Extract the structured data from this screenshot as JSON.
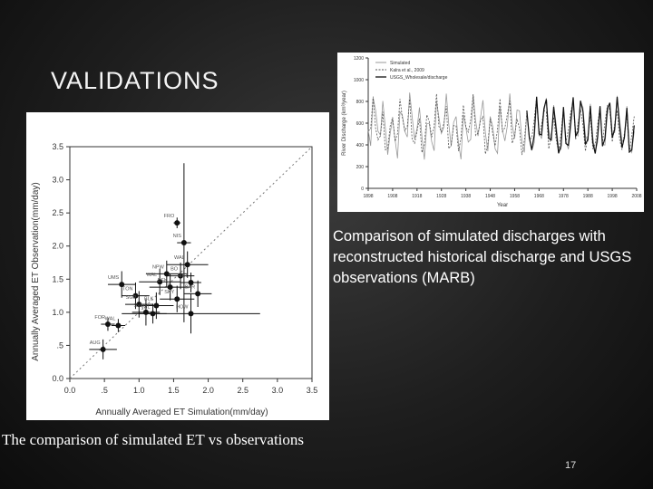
{
  "slide": {
    "title": "VALIDATIONS",
    "caption_right": "Comparison of simulated discharges with reconstructed historical discharge and USGS observations  (MARB)",
    "caption_bottom": "The comparison of simulated ET vs observations",
    "page_number": "17"
  },
  "chart_data": [
    {
      "type": "scatter",
      "xlabel": "Annually Averaged ET Simulation(mm/day)",
      "ylabel": "Annually Averaged ET Observation(mm/day)",
      "xlim": [
        0.0,
        3.5
      ],
      "ylim": [
        0.0,
        3.5
      ],
      "xticks": [
        "0.0",
        ".5",
        "1.0",
        "1.5",
        "2.0",
        "2.5",
        "3.0",
        "3.5"
      ],
      "yticks": [
        "0.0",
        ".5",
        "1.0",
        "1.5",
        "2.0",
        "2.5",
        "3.0",
        "3.5"
      ],
      "reference_line": "1:1",
      "points": [
        {
          "label": "FRO",
          "x": 1.55,
          "y": 2.35,
          "xerr": 0.05,
          "yerr": 0.08
        },
        {
          "label": "NIS",
          "x": 1.65,
          "y": 2.05,
          "xerr": 0.1,
          "yerr": 1.2
        },
        {
          "label": "WAL",
          "x": 1.7,
          "y": 1.72,
          "xerr": 0.3,
          "yerr": 0.2
        },
        {
          "label": "NPW",
          "x": 1.4,
          "y": 1.58,
          "xerr": 0.3,
          "yerr": 0.2
        },
        {
          "label": "BO",
          "x": 1.6,
          "y": 1.55,
          "xerr": 0.2,
          "yerr": 0.2
        },
        {
          "label": "UMS",
          "x": 0.75,
          "y": 1.42,
          "xerr": 0.2,
          "yerr": 0.2
        },
        {
          "label": "WAL",
          "x": 1.3,
          "y": 1.46,
          "xerr": 0.3,
          "yerr": 0.2
        },
        {
          "label": "DFK",
          "x": 1.45,
          "y": 1.38,
          "xerr": 0.3,
          "yerr": 0.2
        },
        {
          "label": "MET",
          "x": 1.75,
          "y": 1.45,
          "xerr": 0.15,
          "yerr": 0.15
        },
        {
          "label": "TON",
          "x": 0.95,
          "y": 1.25,
          "xerr": 0.2,
          "yerr": 0.2
        },
        {
          "label": "SKY",
          "x": 1.55,
          "y": 1.2,
          "xerr": 0.25,
          "yerr": 0.2
        },
        {
          "label": "BAR",
          "x": 1.85,
          "y": 1.28,
          "xerr": 0.2,
          "yerr": 0.2
        },
        {
          "label": "SGP",
          "x": 1.0,
          "y": 1.12,
          "xerr": 0.2,
          "yerr": 0.2
        },
        {
          "label": "BLK",
          "x": 1.25,
          "y": 1.1,
          "xerr": 0.25,
          "yerr": 0.2
        },
        {
          "label": "SVL",
          "x": 1.1,
          "y": 1.0,
          "xerr": 0.2,
          "yerr": 0.2
        },
        {
          "label": "WIL",
          "x": 1.2,
          "y": 0.98,
          "xerr": 0.2,
          "yerr": 0.15
        },
        {
          "label": "HOW",
          "x": 1.75,
          "y": 0.98,
          "xerr": 1.0,
          "yerr": 0.3
        },
        {
          "label": "FOR",
          "x": 0.55,
          "y": 0.82,
          "xerr": 0.1,
          "yerr": 0.1
        },
        {
          "label": "WAL",
          "x": 0.7,
          "y": 0.8,
          "xerr": 0.1,
          "yerr": 0.1
        },
        {
          "label": "AUG",
          "x": 0.48,
          "y": 0.44,
          "xerr": 0.2,
          "yerr": 0.15
        }
      ]
    },
    {
      "type": "line",
      "xlabel": "Year",
      "ylabel": "River Discharge (km³/year)",
      "xlim": [
        1898,
        2008
      ],
      "ylim": [
        0,
        1200
      ],
      "xticks": [
        "1898",
        "1908",
        "1918",
        "1928",
        "1938",
        "1948",
        "1958",
        "1968",
        "1978",
        "1988",
        "1998",
        "2008"
      ],
      "yticks": [
        "0",
        "200",
        "400",
        "600",
        "800",
        "1000",
        "1200"
      ],
      "series": [
        {
          "name": "Simulated",
          "style": "solid-gray"
        },
        {
          "name": "Kalra et al., 2009",
          "style": "dashed"
        },
        {
          "name": "USGS_Wholesale/discharge",
          "style": "solid-black"
        }
      ]
    }
  ]
}
